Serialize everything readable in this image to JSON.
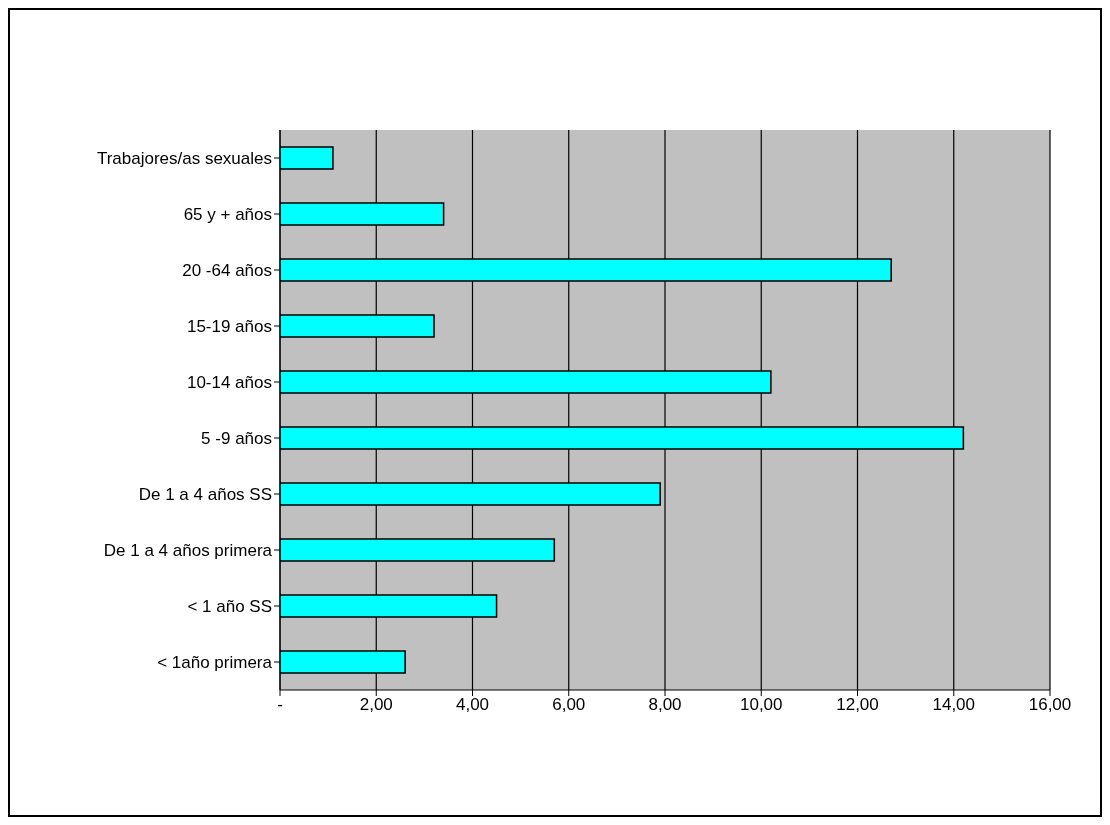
{
  "chart_data": {
    "type": "bar",
    "orientation": "horizontal",
    "categories": [
      "Trabajores/as sexuales",
      "65 y + años",
      "20 -64 años",
      "15-19 años",
      "10-14 años",
      "5 -9 años",
      "De 1 a 4 años SS",
      "De 1 a 4 años primera",
      "< 1 año SS",
      "< 1año primera"
    ],
    "values": [
      1.1,
      3.4,
      12.7,
      3.2,
      10.2,
      14.2,
      7.9,
      5.7,
      4.5,
      2.6
    ],
    "color": "#00ffff",
    "xlim": [
      0,
      16
    ],
    "xticks": [
      {
        "value": 0,
        "label": "-"
      },
      {
        "value": 2,
        "label": "2,00"
      },
      {
        "value": 4,
        "label": "4,00"
      },
      {
        "value": 6,
        "label": "6,00"
      },
      {
        "value": 8,
        "label": "8,00"
      },
      {
        "value": 10,
        "label": "10,00"
      },
      {
        "value": 12,
        "label": "12,00"
      },
      {
        "value": 14,
        "label": "14,00"
      },
      {
        "value": 16,
        "label": "16,00"
      }
    ],
    "grid": "x",
    "legend": false
  }
}
